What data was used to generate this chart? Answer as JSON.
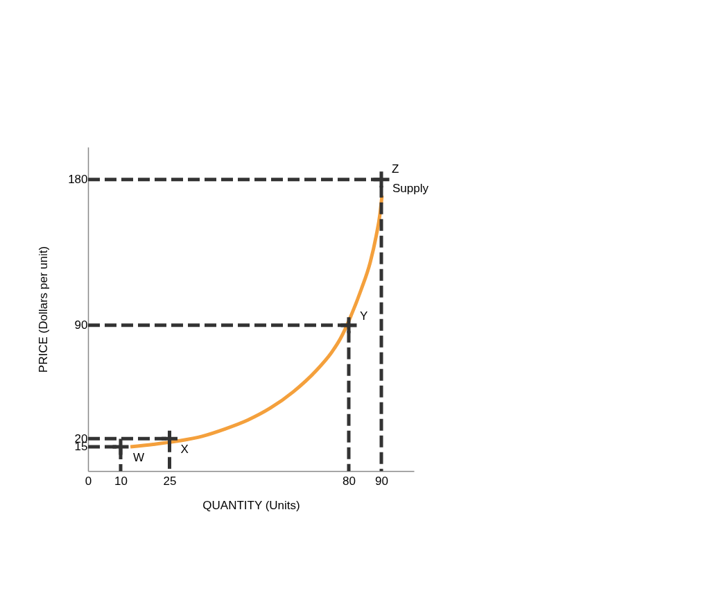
{
  "chart_data": {
    "type": "line",
    "xlabel": "QUANTITY (Units)",
    "ylabel": "PRICE (Dollars per unit)",
    "xlim": [
      0,
      100
    ],
    "ylim": [
      0,
      200
    ],
    "xticks": [
      0,
      10,
      25,
      80,
      90
    ],
    "yticks": [
      15,
      20,
      90,
      180
    ],
    "series": [
      {
        "name": "Supply",
        "line_style": "solid",
        "color": "#f4a03c",
        "x": [
          13,
          20,
          28,
          35,
          42,
          49,
          56,
          63,
          70,
          75,
          77.5,
          80.5,
          83.8,
          86.6,
          88.4,
          89.6,
          90.2
        ],
        "values": [
          15,
          16.5,
          18.7,
          21.5,
          26,
          31.5,
          39,
          49,
          62,
          74,
          82,
          95,
          112,
          129,
          145,
          159,
          170
        ]
      },
      {
        "type": "line",
        "line_style": "dashed",
        "color": "#333333",
        "x": [
          0,
          10,
          10
        ],
        "values": [
          15,
          15,
          0
        ]
      },
      {
        "type": "line",
        "line_style": "dashed",
        "color": "#333333",
        "x": [
          0,
          25,
          25
        ],
        "values": [
          20,
          20,
          0
        ]
      },
      {
        "type": "line",
        "line_style": "dashed",
        "color": "#333333",
        "x": [
          0,
          80,
          80
        ],
        "values": [
          90,
          90,
          0
        ]
      },
      {
        "type": "line",
        "line_style": "dashed",
        "color": "#333333",
        "x": [
          0,
          90,
          90
        ],
        "values": [
          180,
          180,
          0
        ]
      },
      {
        "type": "scatter",
        "marker": "cross",
        "color": "#333333",
        "x": [
          10,
          25,
          80,
          90
        ],
        "values": [
          15,
          20,
          90,
          180
        ]
      }
    ],
    "annotations": [
      {
        "text": "W",
        "x": 10,
        "y": 15
      },
      {
        "text": "X",
        "x": 25,
        "y": 20
      },
      {
        "text": "Y",
        "x": 80,
        "y": 90
      },
      {
        "text": "Z",
        "x": 90,
        "y": 180
      }
    ]
  }
}
